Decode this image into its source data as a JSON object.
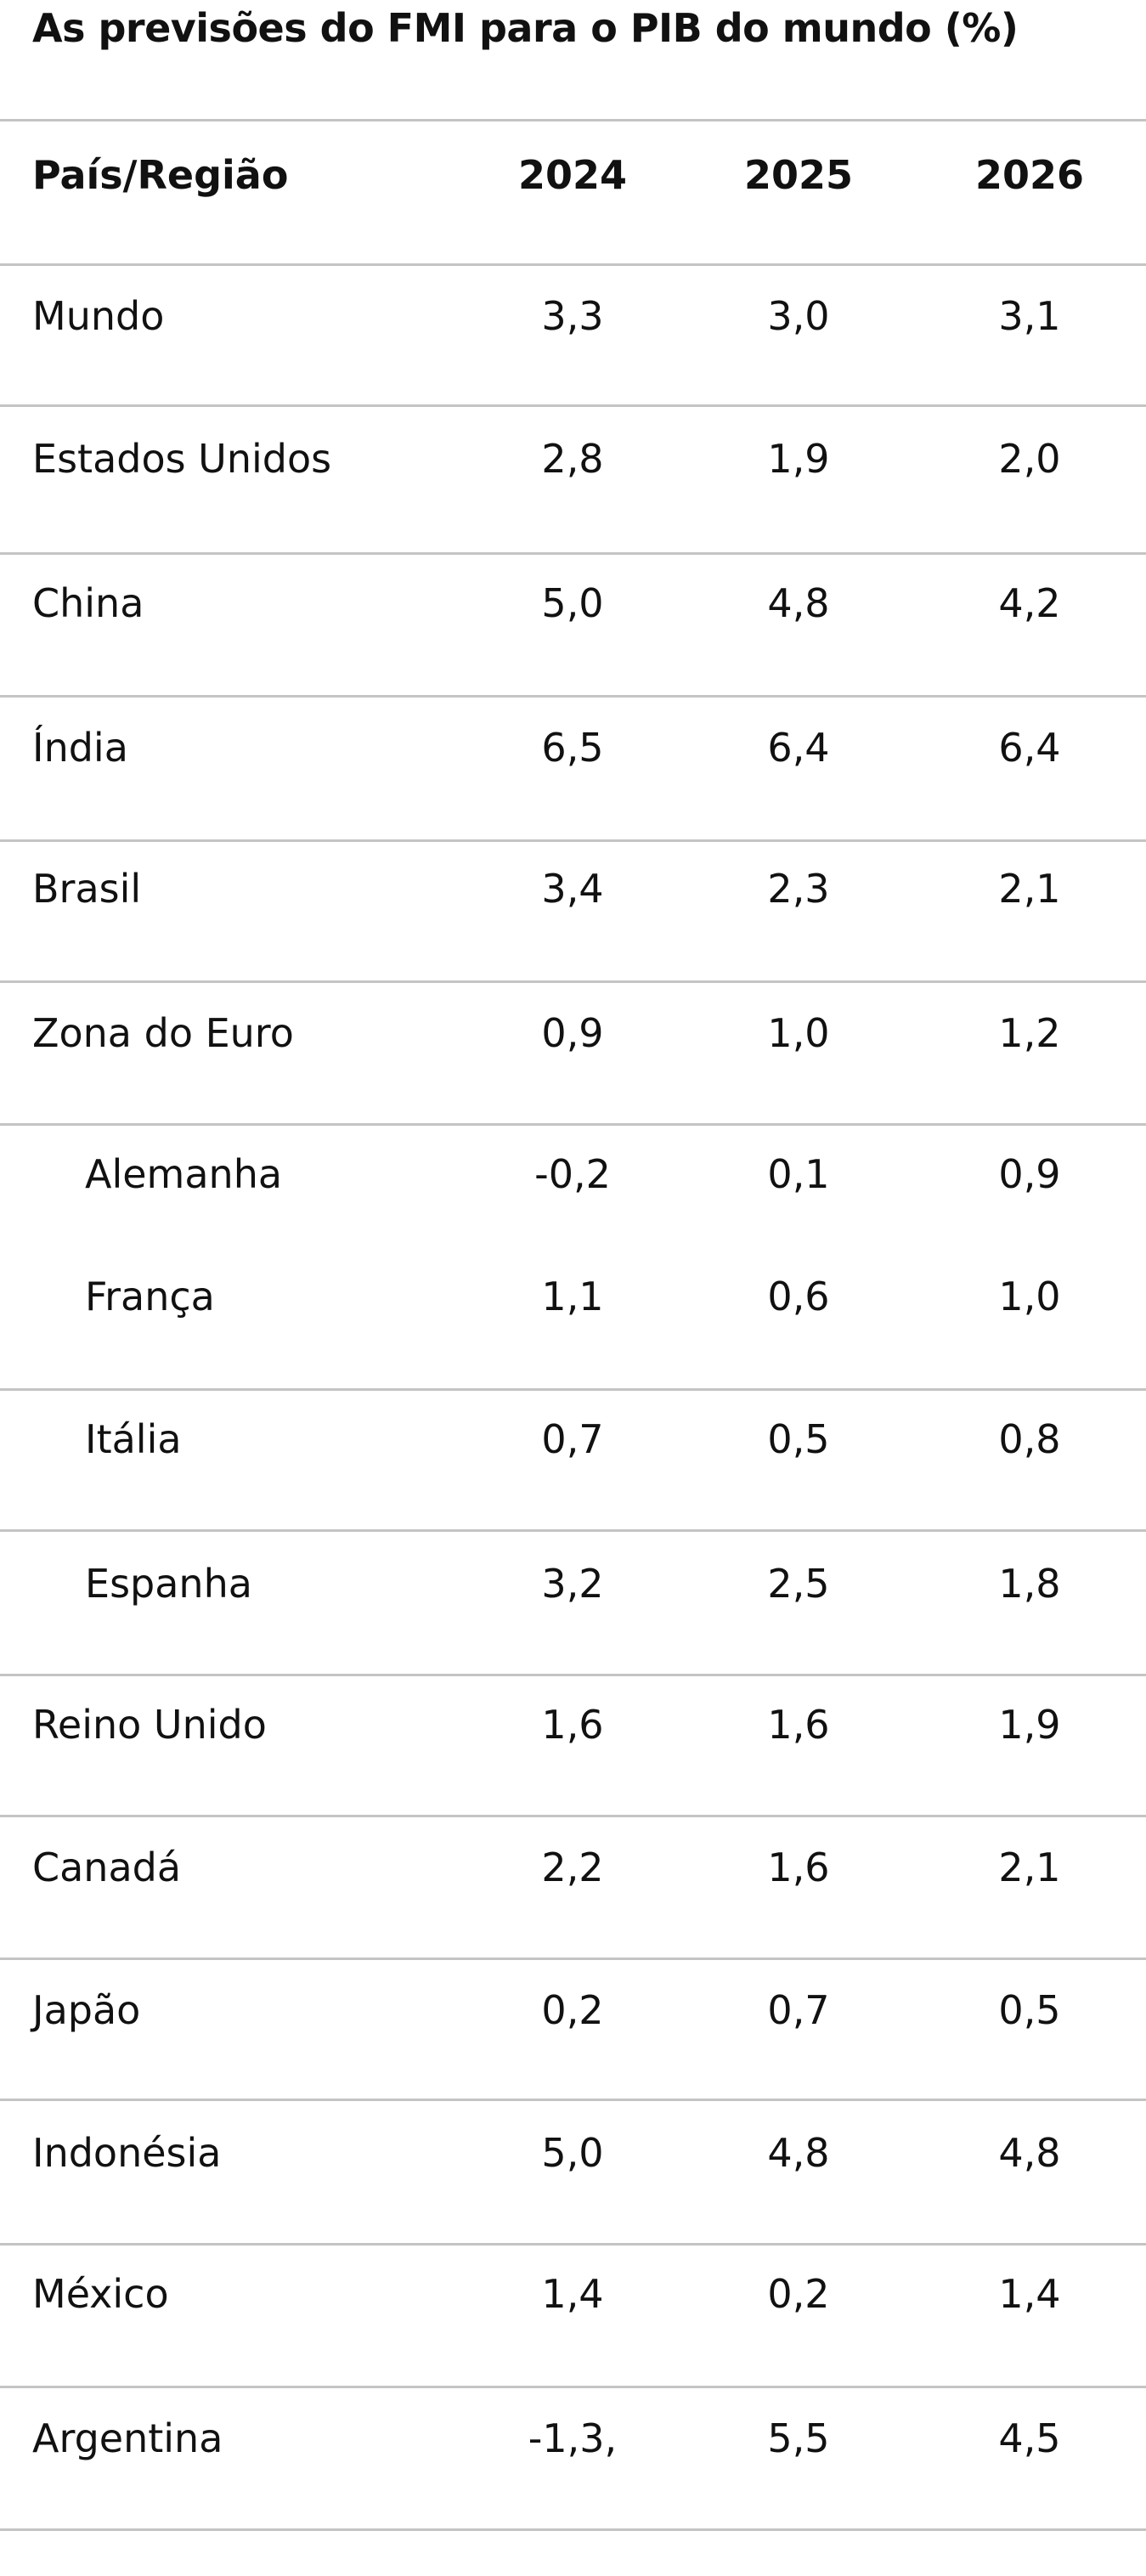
{
  "title": "As previsões do FMI para o PIB do mundo (%)",
  "table": {
    "headers": [
      "País/Região",
      "2024",
      "2025",
      "2026"
    ],
    "rows": [
      {
        "name": "Mundo",
        "v2024": "3,3",
        "v2025": "3,0",
        "v2026": "3,1"
      },
      {
        "name": "Estados Unidos",
        "v2024": "2,8",
        "v2025": "1,9",
        "v2026": "2,0"
      },
      {
        "name": "China",
        "v2024": "5,0",
        "v2025": "4,8",
        "v2026": "4,2"
      },
      {
        "name": "Índia",
        "v2024": "6,5",
        "v2025": "6,4",
        "v2026": "6,4"
      },
      {
        "name": "Brasil",
        "v2024": "3,4",
        "v2025": "2,3",
        "v2026": "2,1"
      },
      {
        "name": "Zona do Euro",
        "v2024": "0,9",
        "v2025": "1,0",
        "v2026": "1,2"
      },
      {
        "name": "Alemanha",
        "v2024": "-0,2",
        "v2025": "0,1",
        "v2026": "0,9"
      },
      {
        "name": "França",
        "v2024": "1,1",
        "v2025": "0,6",
        "v2026": "1,0"
      },
      {
        "name": "Itália",
        "v2024": "0,7",
        "v2025": "0,5",
        "v2026": "0,8"
      },
      {
        "name": "Espanha",
        "v2024": "3,2",
        "v2025": "2,5",
        "v2026": "1,8"
      },
      {
        "name": "Reino Unido",
        "v2024": "1,6",
        "v2025": "1,6",
        "v2026": "1,9"
      },
      {
        "name": "Canadá",
        "v2024": "2,2",
        "v2025": "1,6",
        "v2026": "2,1"
      },
      {
        "name": "Japão",
        "v2024": "0,2",
        "v2025": "0,7",
        "v2026": "0,5"
      },
      {
        "name": "Indonésia",
        "v2024": "5,0",
        "v2025": "4,8",
        "v2026": "4,8"
      },
      {
        "name": "México",
        "v2024": "1,4",
        "v2025": "0,2",
        "v2026": "1,4"
      },
      {
        "name": "Argentina",
        "v2024": "-1,3,",
        "v2025": "5,5",
        "v2026": "4,5"
      }
    ]
  }
}
